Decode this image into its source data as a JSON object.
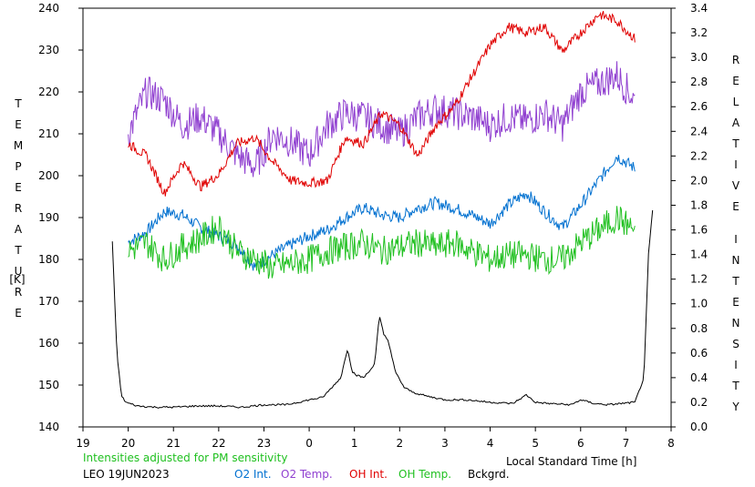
{
  "chart_data": {
    "type": "line",
    "station": "LEO 19JUN2023",
    "note": "Intensities adjusted for PM sensitivity",
    "xlabel": "Local Standard Time [h]",
    "ylabel_left_letters": [
      "T",
      "E",
      "M",
      "P",
      "E",
      "R",
      "A",
      "T",
      "U",
      "R",
      "E",
      "[K]"
    ],
    "ylabel_right_letters": [
      "R",
      "E",
      "L",
      "A",
      "T",
      "I",
      "V",
      "E",
      "I",
      "N",
      "T",
      "E",
      "N",
      "S",
      "I",
      "T",
      "Y"
    ],
    "x_ticks": [
      19,
      20,
      21,
      22,
      23,
      0,
      1,
      2,
      3,
      4,
      5,
      6,
      7,
      8
    ],
    "x_range": [
      19,
      32
    ],
    "y_left_range": [
      140,
      240
    ],
    "y_left_ticks": [
      140,
      150,
      160,
      170,
      180,
      190,
      200,
      210,
      220,
      230,
      240
    ],
    "y_right_range": [
      0.0,
      3.4
    ],
    "y_right_ticks": [
      "0.0",
      "0.2",
      "0.4",
      "0.6",
      "0.8",
      "1.0",
      "1.2",
      "1.4",
      "1.6",
      "1.8",
      "2.0",
      "2.2",
      "2.4",
      "2.6",
      "2.8",
      "3.0",
      "3.2",
      "3.4"
    ],
    "grid": false,
    "series": [
      {
        "name": "O2 Int.",
        "axis": "right",
        "color": "#0070d0",
        "x": [
          20.0,
          20.4,
          20.8,
          21.2,
          21.6,
          22.0,
          22.4,
          22.8,
          23.2,
          23.6,
          24.0,
          24.4,
          24.8,
          25.2,
          25.6,
          26.0,
          26.4,
          26.8,
          27.2,
          27.6,
          28.0,
          28.4,
          28.8,
          29.2,
          29.6,
          30.0,
          30.4,
          30.8,
          31.2
        ],
        "values": [
          1.5,
          1.58,
          1.75,
          1.72,
          1.62,
          1.55,
          1.48,
          1.3,
          1.4,
          1.48,
          1.55,
          1.6,
          1.7,
          1.78,
          1.72,
          1.7,
          1.78,
          1.82,
          1.78,
          1.72,
          1.65,
          1.8,
          1.9,
          1.75,
          1.62,
          1.8,
          2.0,
          2.2,
          2.1
        ]
      },
      {
        "name": "O2 Temp.",
        "axis": "left",
        "color": "#9040d0",
        "x": [
          20.0,
          20.4,
          20.8,
          21.2,
          21.6,
          22.0,
          22.4,
          22.8,
          23.2,
          23.6,
          24.0,
          24.4,
          24.8,
          25.2,
          25.6,
          26.0,
          26.4,
          26.8,
          27.2,
          27.6,
          28.0,
          28.4,
          28.8,
          29.2,
          29.6,
          30.0,
          30.4,
          30.8,
          31.2
        ],
        "values": [
          210,
          220,
          218,
          212,
          214,
          210,
          205,
          202,
          210,
          208,
          205,
          212,
          215,
          214,
          212,
          210,
          214,
          216,
          215,
          214,
          212,
          214,
          213,
          215,
          212,
          220,
          222,
          224,
          218
        ]
      },
      {
        "name": "OH Int.",
        "axis": "right",
        "color": "#e00000",
        "x": [
          20.0,
          20.4,
          20.8,
          21.2,
          21.6,
          22.0,
          22.4,
          22.8,
          23.2,
          23.6,
          24.0,
          24.4,
          24.8,
          25.2,
          25.6,
          26.0,
          26.4,
          26.8,
          27.2,
          27.6,
          28.0,
          28.4,
          28.8,
          29.2,
          29.6,
          30.0,
          30.4,
          30.8,
          31.2
        ],
        "values": [
          2.3,
          2.2,
          1.9,
          2.15,
          1.95,
          2.05,
          2.3,
          2.35,
          2.15,
          2.0,
          1.98,
          2.0,
          2.35,
          2.3,
          2.55,
          2.45,
          2.2,
          2.45,
          2.6,
          2.85,
          3.1,
          3.25,
          3.2,
          3.25,
          3.05,
          3.2,
          3.35,
          3.3,
          3.15
        ]
      },
      {
        "name": "OH Temp.",
        "axis": "left",
        "color": "#20c020",
        "x": [
          20.0,
          20.4,
          20.8,
          21.2,
          21.6,
          22.0,
          22.4,
          22.8,
          23.2,
          23.6,
          24.0,
          24.4,
          24.8,
          25.2,
          25.6,
          26.0,
          26.4,
          26.8,
          27.2,
          27.6,
          28.0,
          28.4,
          28.8,
          29.2,
          29.6,
          30.0,
          30.4,
          30.8,
          31.2
        ],
        "values": [
          182,
          184,
          180,
          183,
          185,
          188,
          182,
          180,
          178,
          179,
          180,
          182,
          183,
          184,
          182,
          183,
          184,
          183,
          184,
          182,
          180,
          181,
          181,
          180,
          180,
          184,
          187,
          190,
          187
        ]
      },
      {
        "name": "Bckgrd.",
        "axis": "right",
        "color": "#000000",
        "x": [
          19.65,
          19.75,
          19.85,
          19.95,
          20.2,
          20.6,
          21.0,
          21.5,
          22.0,
          22.5,
          23.0,
          23.5,
          24.0,
          24.3,
          24.5,
          24.7,
          24.85,
          24.95,
          25.05,
          25.2,
          25.35,
          25.45,
          25.55,
          25.65,
          25.75,
          25.9,
          26.1,
          26.3,
          26.6,
          27.0,
          27.5,
          28.0,
          28.5,
          28.8,
          29.0,
          29.3,
          29.8,
          30.0,
          30.3,
          30.6,
          30.9,
          31.2,
          31.4,
          31.5,
          31.6
        ],
        "values": [
          1.5,
          0.6,
          0.25,
          0.2,
          0.17,
          0.16,
          0.16,
          0.17,
          0.17,
          0.16,
          0.18,
          0.18,
          0.22,
          0.24,
          0.32,
          0.4,
          0.64,
          0.45,
          0.42,
          0.4,
          0.46,
          0.52,
          0.9,
          0.75,
          0.7,
          0.45,
          0.32,
          0.28,
          0.25,
          0.22,
          0.22,
          0.2,
          0.19,
          0.26,
          0.2,
          0.19,
          0.18,
          0.22,
          0.19,
          0.18,
          0.19,
          0.2,
          0.4,
          1.4,
          1.8
        ]
      }
    ]
  }
}
